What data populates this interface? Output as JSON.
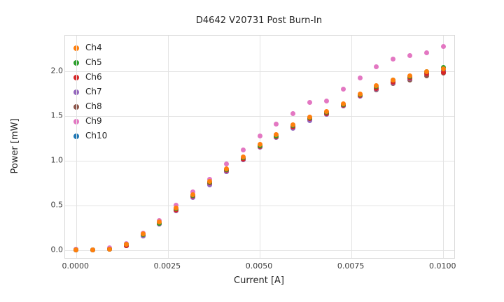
{
  "figure": {
    "title": "D4642 V20731 Post Burn-In",
    "xlabel": "Current [A]",
    "ylabel": "Power [mW]"
  },
  "chart_data": {
    "type": "scatter",
    "title": "D4642 V20731 Post Burn-In",
    "xlabel": "Current [A]",
    "ylabel": "Power [mW]",
    "grid": true,
    "legend_position": "upper left",
    "xlim": [
      -0.0003,
      0.0103
    ],
    "ylim": [
      -0.09,
      2.4
    ],
    "xticks": {
      "values": [
        0.0,
        0.0025,
        0.005,
        0.0075,
        0.01
      ],
      "labels": [
        "0.0000",
        "0.0025",
        "0.0050",
        "0.0075",
        "0.0100"
      ]
    },
    "yticks": {
      "values": [
        0.0,
        0.5,
        1.0,
        1.5,
        2.0
      ],
      "labels": [
        "0.0",
        "0.5",
        "1.0",
        "1.5",
        "2.0"
      ]
    },
    "x": [
      0.0,
      0.000455,
      0.000909,
      0.001364,
      0.001818,
      0.002273,
      0.002727,
      0.003182,
      0.003636,
      0.004091,
      0.004545,
      0.005,
      0.005455,
      0.005909,
      0.006364,
      0.006818,
      0.007273,
      0.007727,
      0.008182,
      0.008636,
      0.009091,
      0.009545,
      0.01
    ],
    "series": [
      {
        "name": "Ch4",
        "color": "#ff7f0e",
        "values": [
          0.0,
          0.0,
          0.01,
          0.06,
          0.18,
          0.31,
          0.47,
          0.62,
          0.77,
          0.91,
          1.04,
          1.18,
          1.29,
          1.4,
          1.49,
          1.55,
          1.64,
          1.75,
          1.84,
          1.9,
          1.95,
          2.0,
          2.03
        ]
      },
      {
        "name": "Ch5",
        "color": "#2ca02c",
        "values": [
          0.0,
          0.0,
          0.01,
          0.06,
          0.17,
          0.3,
          0.46,
          0.61,
          0.76,
          0.9,
          1.03,
          1.17,
          1.28,
          1.39,
          1.48,
          1.54,
          1.63,
          1.74,
          1.83,
          1.9,
          1.94,
          2.0,
          2.04
        ]
      },
      {
        "name": "Ch6",
        "color": "#d62728",
        "values": [
          0.0,
          0.0,
          0.01,
          0.05,
          0.17,
          0.3,
          0.45,
          0.6,
          0.75,
          0.89,
          1.02,
          1.16,
          1.27,
          1.38,
          1.47,
          1.53,
          1.62,
          1.73,
          1.81,
          1.88,
          1.93,
          1.97,
          1.99
        ]
      },
      {
        "name": "Ch7",
        "color": "#9467bd",
        "values": [
          0.0,
          0.0,
          0.01,
          0.05,
          0.16,
          0.29,
          0.44,
          0.59,
          0.73,
          0.88,
          1.01,
          1.15,
          1.26,
          1.36,
          1.45,
          1.52,
          1.61,
          1.72,
          1.8,
          1.87,
          1.92,
          1.97,
          2.0
        ]
      },
      {
        "name": "Ch8",
        "color": "#8c564b",
        "values": [
          0.0,
          0.0,
          0.01,
          0.05,
          0.16,
          0.29,
          0.45,
          0.6,
          0.74,
          0.88,
          1.01,
          1.15,
          1.26,
          1.37,
          1.46,
          1.52,
          1.61,
          1.72,
          1.79,
          1.86,
          1.9,
          1.95,
          1.98
        ]
      },
      {
        "name": "Ch9",
        "color": "#e377c2",
        "values": [
          0.01,
          0.0,
          0.02,
          0.07,
          0.19,
          0.33,
          0.5,
          0.65,
          0.79,
          0.96,
          1.12,
          1.28,
          1.41,
          1.53,
          1.65,
          1.67,
          1.8,
          1.93,
          2.05,
          2.14,
          2.18,
          2.21,
          2.28
        ]
      },
      {
        "name": "Ch10",
        "color": "#1f77b4",
        "values": [
          0.0,
          0.0,
          0.01,
          0.05,
          0.17,
          0.3,
          0.45,
          0.6,
          0.74,
          0.89,
          1.02,
          1.16,
          1.27,
          1.38,
          1.47,
          1.53,
          1.62,
          1.73,
          1.81,
          1.88,
          1.93,
          1.98,
          2.01
        ]
      }
    ]
  }
}
